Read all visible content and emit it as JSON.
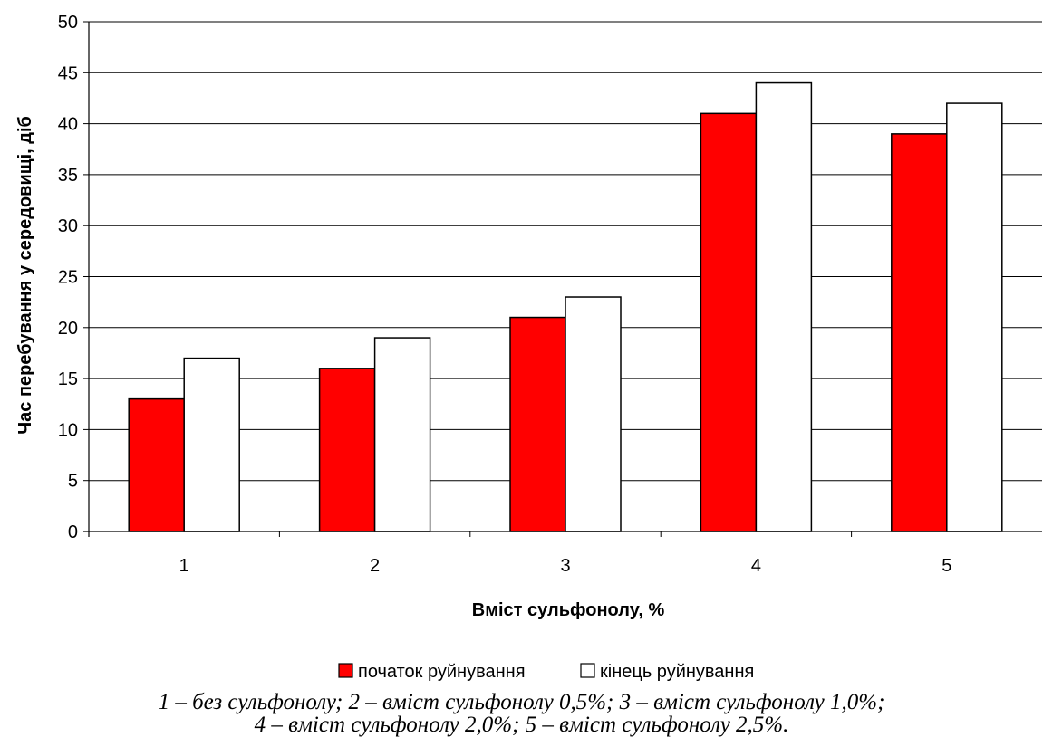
{
  "chart_data": {
    "type": "bar",
    "title": "",
    "xlabel": "Вміст сульфонолу, %",
    "ylabel": "Час перебування у середовищі, діб",
    "categories": [
      "1",
      "2",
      "3",
      "4",
      "5"
    ],
    "series": [
      {
        "name": "початок руйнування",
        "values": [
          13,
          16,
          21,
          41,
          39
        ],
        "color": "#ff0000"
      },
      {
        "name": "кінець руйнування",
        "values": [
          17,
          19,
          23,
          44,
          42
        ],
        "color": "#ffffff"
      }
    ],
    "ylim": [
      0,
      50
    ],
    "yticks": [
      "0",
      "5",
      "10",
      "15",
      "20",
      "25",
      "30",
      "35",
      "40",
      "45",
      "50"
    ],
    "grid": "horizontal",
    "legend_position": "bottom"
  },
  "caption": {
    "line1": "1 – без сульфонолу; 2 – вміст сульфонолу 0,5%; 3 – вміст сульфонолу 1,0%;",
    "line2": "4 – вміст сульфонолу 2,0%; 5 – вміст сульфонолу 2,5%."
  }
}
